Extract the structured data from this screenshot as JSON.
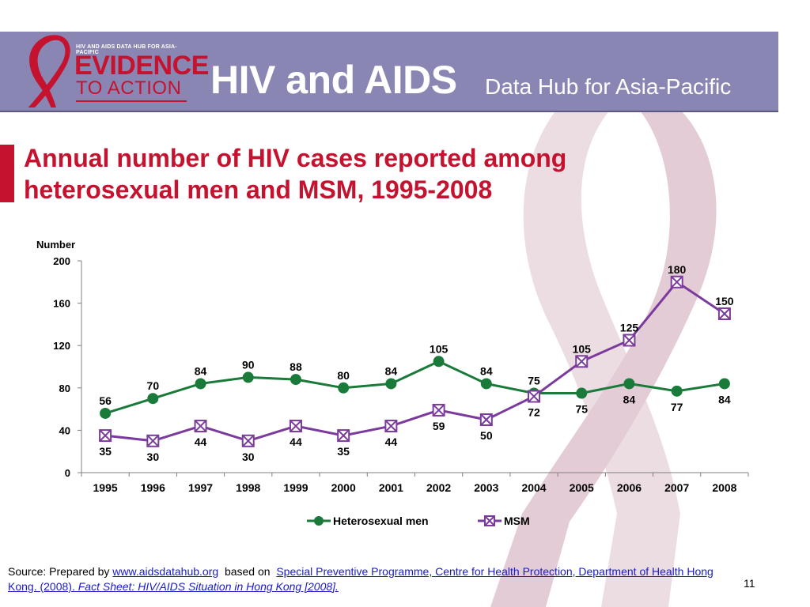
{
  "header": {
    "logo_tag": "HIV AND AIDS DATA HUB FOR ASIA-PACIFIC",
    "logo_line1": "EVIDENCE",
    "logo_line2": "TO ACTION",
    "title": "HIV and AIDS",
    "subtitle": "Data Hub for Asia-Pacific"
  },
  "slide": {
    "title": "Annual number of HIV cases reported among heterosexual men and MSM, 1995-2008",
    "page_number": "11"
  },
  "source": {
    "prefix": "Source: Prepared by ",
    "link1": "www.aidsdatahub.org",
    "middle": "  based on  ",
    "link2a": "Special Preventive Programme, Centre for Health Protection, Department of Health Hong Kong. (2008). ",
    "link2b": "Fact Sheet: HIV/AIDS Situation in Hong Kong [2008]."
  },
  "colors": {
    "header_band": "#8a86b4",
    "accent_red": "#c4122f",
    "series_heterosexual": "#1a7a3a",
    "series_msm": "#7b3b9c",
    "ribbon_bg": "#e8d4dc"
  },
  "chart_data": {
    "type": "line",
    "title": "",
    "xlabel": "",
    "ylabel": "Number",
    "ylim": [
      0,
      200
    ],
    "yticks": [
      0,
      40,
      80,
      120,
      160,
      200
    ],
    "x": [
      "1995",
      "1996",
      "1997",
      "1998",
      "1999",
      "2000",
      "2001",
      "2002",
      "2003",
      "2004",
      "2005",
      "2006",
      "2007",
      "2008"
    ],
    "legend": "bottom",
    "grid": false,
    "series": [
      {
        "name": "Heterosexual men",
        "marker": "circle",
        "values": [
          56,
          70,
          84,
          90,
          88,
          80,
          84,
          105,
          84,
          75,
          75,
          84,
          77,
          84
        ]
      },
      {
        "name": "MSM",
        "marker": "boxed-x",
        "values": [
          35,
          30,
          44,
          30,
          44,
          35,
          44,
          59,
          50,
          72,
          105,
          125,
          180,
          150
        ]
      }
    ]
  }
}
